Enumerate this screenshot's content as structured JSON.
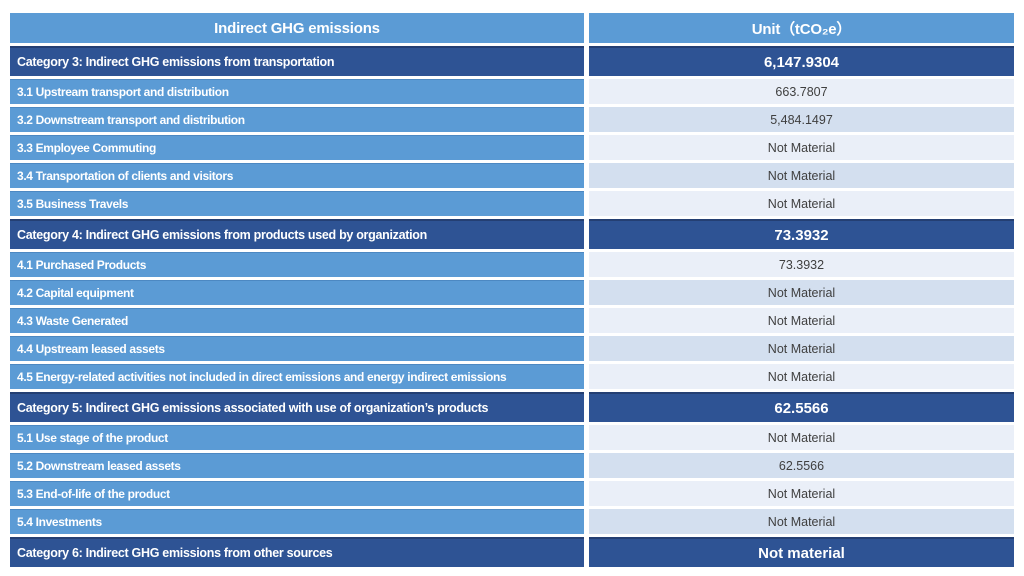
{
  "page_title": "Indirect GHG emissions table",
  "colors": {
    "header_blue": "#5B9BD5",
    "category_navy": "#2E5394",
    "sub_row_blue": "#5B9BD5",
    "value_row_light": "#EAEFF8",
    "value_row_shaded": "#D3DFEF",
    "text_white": "#FFFFFF",
    "text_dark": "#3F3F3F"
  },
  "table": {
    "header": {
      "col1": "Indirect GHG emissions",
      "col2": "Unit（tCO₂e）"
    },
    "rows": [
      {
        "type": "category",
        "shade": "",
        "label": "Category 3: Indirect GHG emissions from transportation",
        "value": "6,147.9304"
      },
      {
        "type": "sub",
        "shade": "light",
        "label": "3.1 Upstream transport and distribution",
        "value": "663.7807"
      },
      {
        "type": "sub",
        "shade": "shaded",
        "label": "3.2 Downstream transport and distribution",
        "value": "5,484.1497"
      },
      {
        "type": "sub",
        "shade": "light",
        "label": "3.3 Employee Commuting",
        "value": "Not Material"
      },
      {
        "type": "sub",
        "shade": "shaded",
        "label": "3.4 Transportation of clients and visitors",
        "value": "Not Material"
      },
      {
        "type": "sub",
        "shade": "light",
        "label": "3.5 Business Travels",
        "value": "Not Material"
      },
      {
        "type": "category",
        "shade": "",
        "label": "Category 4: Indirect GHG emissions from products used by organization",
        "value": "73.3932"
      },
      {
        "type": "sub",
        "shade": "light",
        "label": "4.1 Purchased Products",
        "value": "73.3932"
      },
      {
        "type": "sub",
        "shade": "shaded",
        "label": "4.2 Capital equipment",
        "value": "Not Material"
      },
      {
        "type": "sub",
        "shade": "light",
        "label": "4.3 Waste Generated",
        "value": "Not Material"
      },
      {
        "type": "sub",
        "shade": "shaded",
        "label": "4.4 Upstream leased assets",
        "value": "Not Material"
      },
      {
        "type": "sub",
        "shade": "light",
        "label": "4.5 Energy-related activities not included in direct emissions and energy indirect emissions",
        "value": "Not Material"
      },
      {
        "type": "category",
        "shade": "",
        "label": "Category 5: Indirect GHG emissions associated with use of organization’s products",
        "value": "62.5566"
      },
      {
        "type": "sub",
        "shade": "light",
        "label": "5.1 Use stage of the product",
        "value": "Not Material"
      },
      {
        "type": "sub",
        "shade": "shaded",
        "label": "5.2 Downstream leased assets",
        "value": "62.5566"
      },
      {
        "type": "sub",
        "shade": "light",
        "label": "5.3 End-of-life of the product",
        "value": "Not Material"
      },
      {
        "type": "sub",
        "shade": "shaded",
        "label": "5.4 Investments",
        "value": "Not Material"
      },
      {
        "type": "category",
        "shade": "",
        "label": "Category 6: Indirect GHG emissions from other sources",
        "value": "Not material"
      }
    ]
  }
}
